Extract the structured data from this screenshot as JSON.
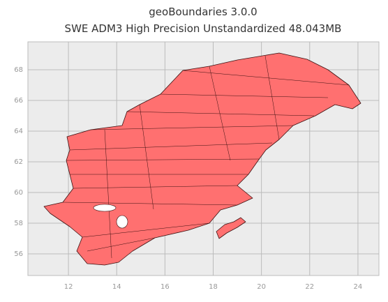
{
  "chart_data": {
    "type": "map",
    "title": "geoBoundaries 3.0.0",
    "subtitle": "SWE ADM3 High Precision Unstandardized 48.043MB",
    "xlim": [
      10.32,
      24.87
    ],
    "xticks": [
      12,
      14,
      16,
      18,
      20,
      22,
      24
    ],
    "ylim": [
      54.59,
      69.82
    ],
    "yticks": [
      56,
      58,
      60,
      62,
      64,
      66,
      68
    ],
    "grid": true,
    "color": "#ff7070"
  }
}
